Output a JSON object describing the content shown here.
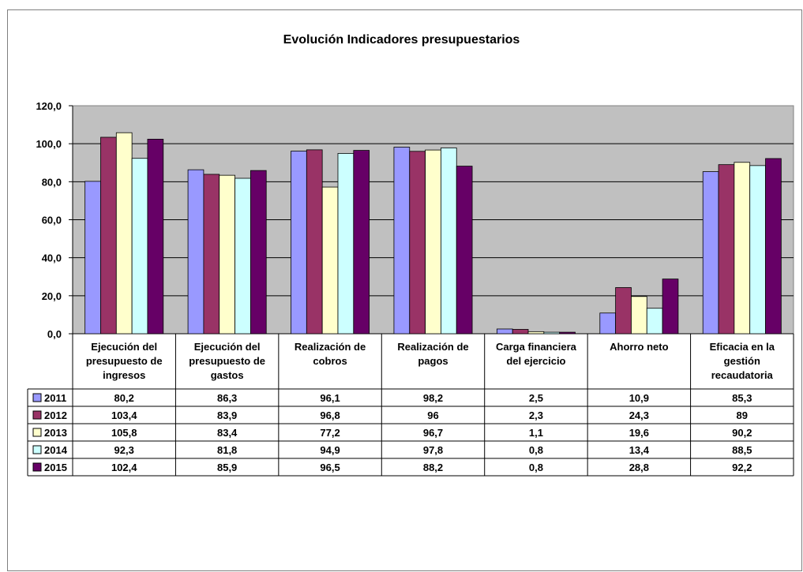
{
  "chart_data": {
    "type": "bar",
    "title": "Evolución Indicadores presupuestarios",
    "categories": [
      [
        "Ejecución  del",
        "presupuesto de",
        "ingresos"
      ],
      [
        "Ejecución del",
        "presupuesto de",
        "gastos"
      ],
      [
        "Realización de",
        "cobros"
      ],
      [
        "Realización de",
        "pagos"
      ],
      [
        "Carga financiera",
        "del ejercicio"
      ],
      [
        "Ahorro neto"
      ],
      [
        "Eficacia en la",
        "gestión",
        "recaudatoria"
      ]
    ],
    "series": [
      {
        "name": "2011",
        "color": "#9999ff",
        "values": [
          80.2,
          86.3,
          96.1,
          98.2,
          2.5,
          10.9,
          85.3
        ],
        "labels": [
          "80,2",
          "86,3",
          "96,1",
          "98,2",
          "2,5",
          "10,9",
          "85,3"
        ]
      },
      {
        "name": "2012",
        "color": "#993366",
        "values": [
          103.4,
          83.9,
          96.8,
          96,
          2.3,
          24.3,
          89
        ],
        "labels": [
          "103,4",
          "83,9",
          "96,8",
          "96",
          "2,3",
          "24,3",
          "89"
        ]
      },
      {
        "name": "2013",
        "color": "#ffffcc",
        "values": [
          105.8,
          83.4,
          77.2,
          96.7,
          1.1,
          19.6,
          90.2
        ],
        "labels": [
          "105,8",
          "83,4",
          "77,2",
          "96,7",
          "1,1",
          "19,6",
          "90,2"
        ]
      },
      {
        "name": "2014",
        "color": "#ccffff",
        "values": [
          92.3,
          81.8,
          94.9,
          97.8,
          0.8,
          13.4,
          88.5
        ],
        "labels": [
          "92,3",
          "81,8",
          "94,9",
          "97,8",
          "0,8",
          "13,4",
          "88,5"
        ]
      },
      {
        "name": "2015",
        "color": "#660066",
        "values": [
          102.4,
          85.9,
          96.5,
          88.2,
          0.8,
          28.8,
          92.2
        ],
        "labels": [
          "102,4",
          "85,9",
          "96,5",
          "88,2",
          "0,8",
          "28,8",
          "92,2"
        ]
      }
    ],
    "ylim": [
      0,
      120
    ],
    "yticks": [
      "0,0",
      "20,0",
      "40,0",
      "60,0",
      "80,0",
      "100,0",
      "120,0"
    ],
    "plot_background": "#c0c0c0",
    "grid": true,
    "legend": "data-table"
  }
}
